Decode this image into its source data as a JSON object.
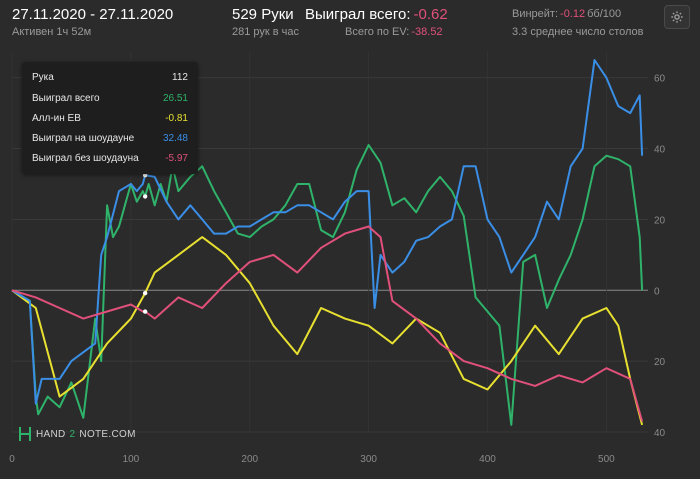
{
  "header": {
    "date_range": "27.11.2020 - 27.11.2020",
    "active": "Активен 1ч 52м",
    "hands": "529 Руки",
    "hands_per_hour": "281 рук в час",
    "won_label": "Выиграл всего:",
    "won_value": "-0.62",
    "ev_label": "Всего по EV:",
    "ev_value": "-38.52",
    "winrate_label": "Винрейт:",
    "winrate_value": "-0.12",
    "winrate_unit": "бб/100",
    "tables": "3.3 среднее число столов"
  },
  "icons": {
    "settings": "gear-icon",
    "logo": "hand2note-logo"
  },
  "logo": {
    "left": "HAND",
    "num": "2",
    "right": "NOTE.COM"
  },
  "legend": {
    "rows": [
      {
        "label": "Рука",
        "value": "112",
        "color": "#e6e6e6"
      },
      {
        "label": "Выиграл всего",
        "value": "26.51",
        "color": "#2fb36a"
      },
      {
        "label": "Алл-ин EB",
        "value": "-0.81",
        "color": "#e8e030"
      },
      {
        "label": "Выиграл на шоудауне",
        "value": "32.48",
        "color": "#3a8ee6"
      },
      {
        "label": "Выиграл без шоудауна",
        "value": "-5.97",
        "color": "#e0507a"
      }
    ]
  },
  "chart_data": {
    "type": "line",
    "xlabel": "",
    "ylabel": "",
    "xlim": [
      0,
      535
    ],
    "ylim": [
      -40,
      65
    ],
    "x_ticks": [
      0,
      100,
      200,
      300,
      400,
      500
    ],
    "y_ticks": [
      60,
      40,
      20,
      0,
      -20,
      -40
    ],
    "y_tick_labels": [
      "60",
      "40",
      "20",
      "0",
      "20",
      "40"
    ],
    "grid": true,
    "legend_placement": "top-left",
    "hover_x": 112,
    "series": [
      {
        "name": "Выиграл всего",
        "color": "#2fb36a",
        "x": [
          0,
          15,
          20,
          22,
          30,
          40,
          50,
          60,
          70,
          75,
          80,
          85,
          90,
          95,
          100,
          105,
          110,
          112,
          115,
          120,
          125,
          130,
          135,
          140,
          150,
          160,
          170,
          180,
          190,
          200,
          210,
          220,
          230,
          240,
          250,
          260,
          270,
          280,
          290,
          300,
          310,
          320,
          330,
          340,
          350,
          360,
          370,
          380,
          390,
          400,
          410,
          420,
          430,
          440,
          450,
          460,
          470,
          480,
          490,
          500,
          510,
          520,
          528,
          530
        ],
        "y": [
          0,
          -3,
          -30,
          -35,
          -30,
          -33,
          -26,
          -36,
          -8,
          -20,
          24,
          15,
          18,
          24,
          30,
          25,
          28,
          26.5,
          30,
          24,
          30,
          25,
          35,
          28,
          32,
          35,
          28,
          22,
          16,
          15,
          18,
          20,
          24,
          30,
          30,
          17,
          15,
          22,
          34,
          41,
          36,
          24,
          26,
          22,
          28,
          32,
          28,
          21,
          -2,
          -6,
          -10,
          -38,
          8,
          10,
          -5,
          3,
          10,
          20,
          35,
          38,
          37,
          35,
          15,
          0
        ]
      },
      {
        "name": "Алл-ин EB",
        "color": "#e8e030",
        "x": [
          0,
          20,
          40,
          60,
          80,
          100,
          110,
          112,
          120,
          140,
          160,
          180,
          200,
          220,
          240,
          260,
          280,
          300,
          320,
          340,
          360,
          380,
          400,
          420,
          440,
          460,
          480,
          500,
          510,
          520,
          530
        ],
        "y": [
          0,
          -5,
          -30,
          -25,
          -15,
          -8,
          -2,
          -0.8,
          5,
          10,
          15,
          10,
          2,
          -10,
          -18,
          -5,
          -8,
          -10,
          -15,
          -8,
          -12,
          -25,
          -28,
          -20,
          -10,
          -18,
          -8,
          -5,
          -10,
          -25,
          -38
        ]
      },
      {
        "name": "Выиграл на шоудауне",
        "color": "#3a8ee6",
        "x": [
          0,
          15,
          20,
          25,
          40,
          50,
          70,
          75,
          80,
          90,
          100,
          105,
          110,
          112,
          120,
          130,
          140,
          150,
          160,
          170,
          180,
          190,
          200,
          210,
          220,
          230,
          240,
          250,
          260,
          270,
          280,
          290,
          300,
          305,
          310,
          320,
          330,
          340,
          350,
          360,
          370,
          380,
          390,
          400,
          410,
          420,
          430,
          440,
          450,
          460,
          470,
          480,
          490,
          500,
          510,
          520,
          528,
          530
        ],
        "y": [
          0,
          -3,
          -32,
          -25,
          -25,
          -20,
          -15,
          10,
          15,
          28,
          30,
          28,
          30,
          32.5,
          32,
          25,
          20,
          24,
          20,
          16,
          16,
          18,
          18,
          20,
          22,
          22,
          24,
          24,
          22,
          20,
          25,
          28,
          28,
          -5,
          10,
          5,
          8,
          14,
          15,
          18,
          20,
          35,
          35,
          20,
          15,
          5,
          10,
          15,
          25,
          20,
          35,
          40,
          65,
          60,
          52,
          50,
          55,
          38
        ]
      },
      {
        "name": "Выиграл без шоудауна",
        "color": "#e0507a",
        "x": [
          0,
          20,
          40,
          60,
          80,
          100,
          110,
          112,
          120,
          140,
          160,
          180,
          200,
          220,
          240,
          260,
          280,
          300,
          310,
          320,
          340,
          360,
          380,
          400,
          420,
          440,
          460,
          480,
          500,
          520,
          530
        ],
        "y": [
          0,
          -2,
          -5,
          -8,
          -6,
          -4,
          -6,
          -6,
          -8,
          -2,
          -5,
          2,
          8,
          10,
          5,
          12,
          16,
          18,
          15,
          -3,
          -8,
          -15,
          -20,
          -22,
          -25,
          -27,
          -24,
          -26,
          -22,
          -25,
          -37
        ]
      }
    ]
  }
}
